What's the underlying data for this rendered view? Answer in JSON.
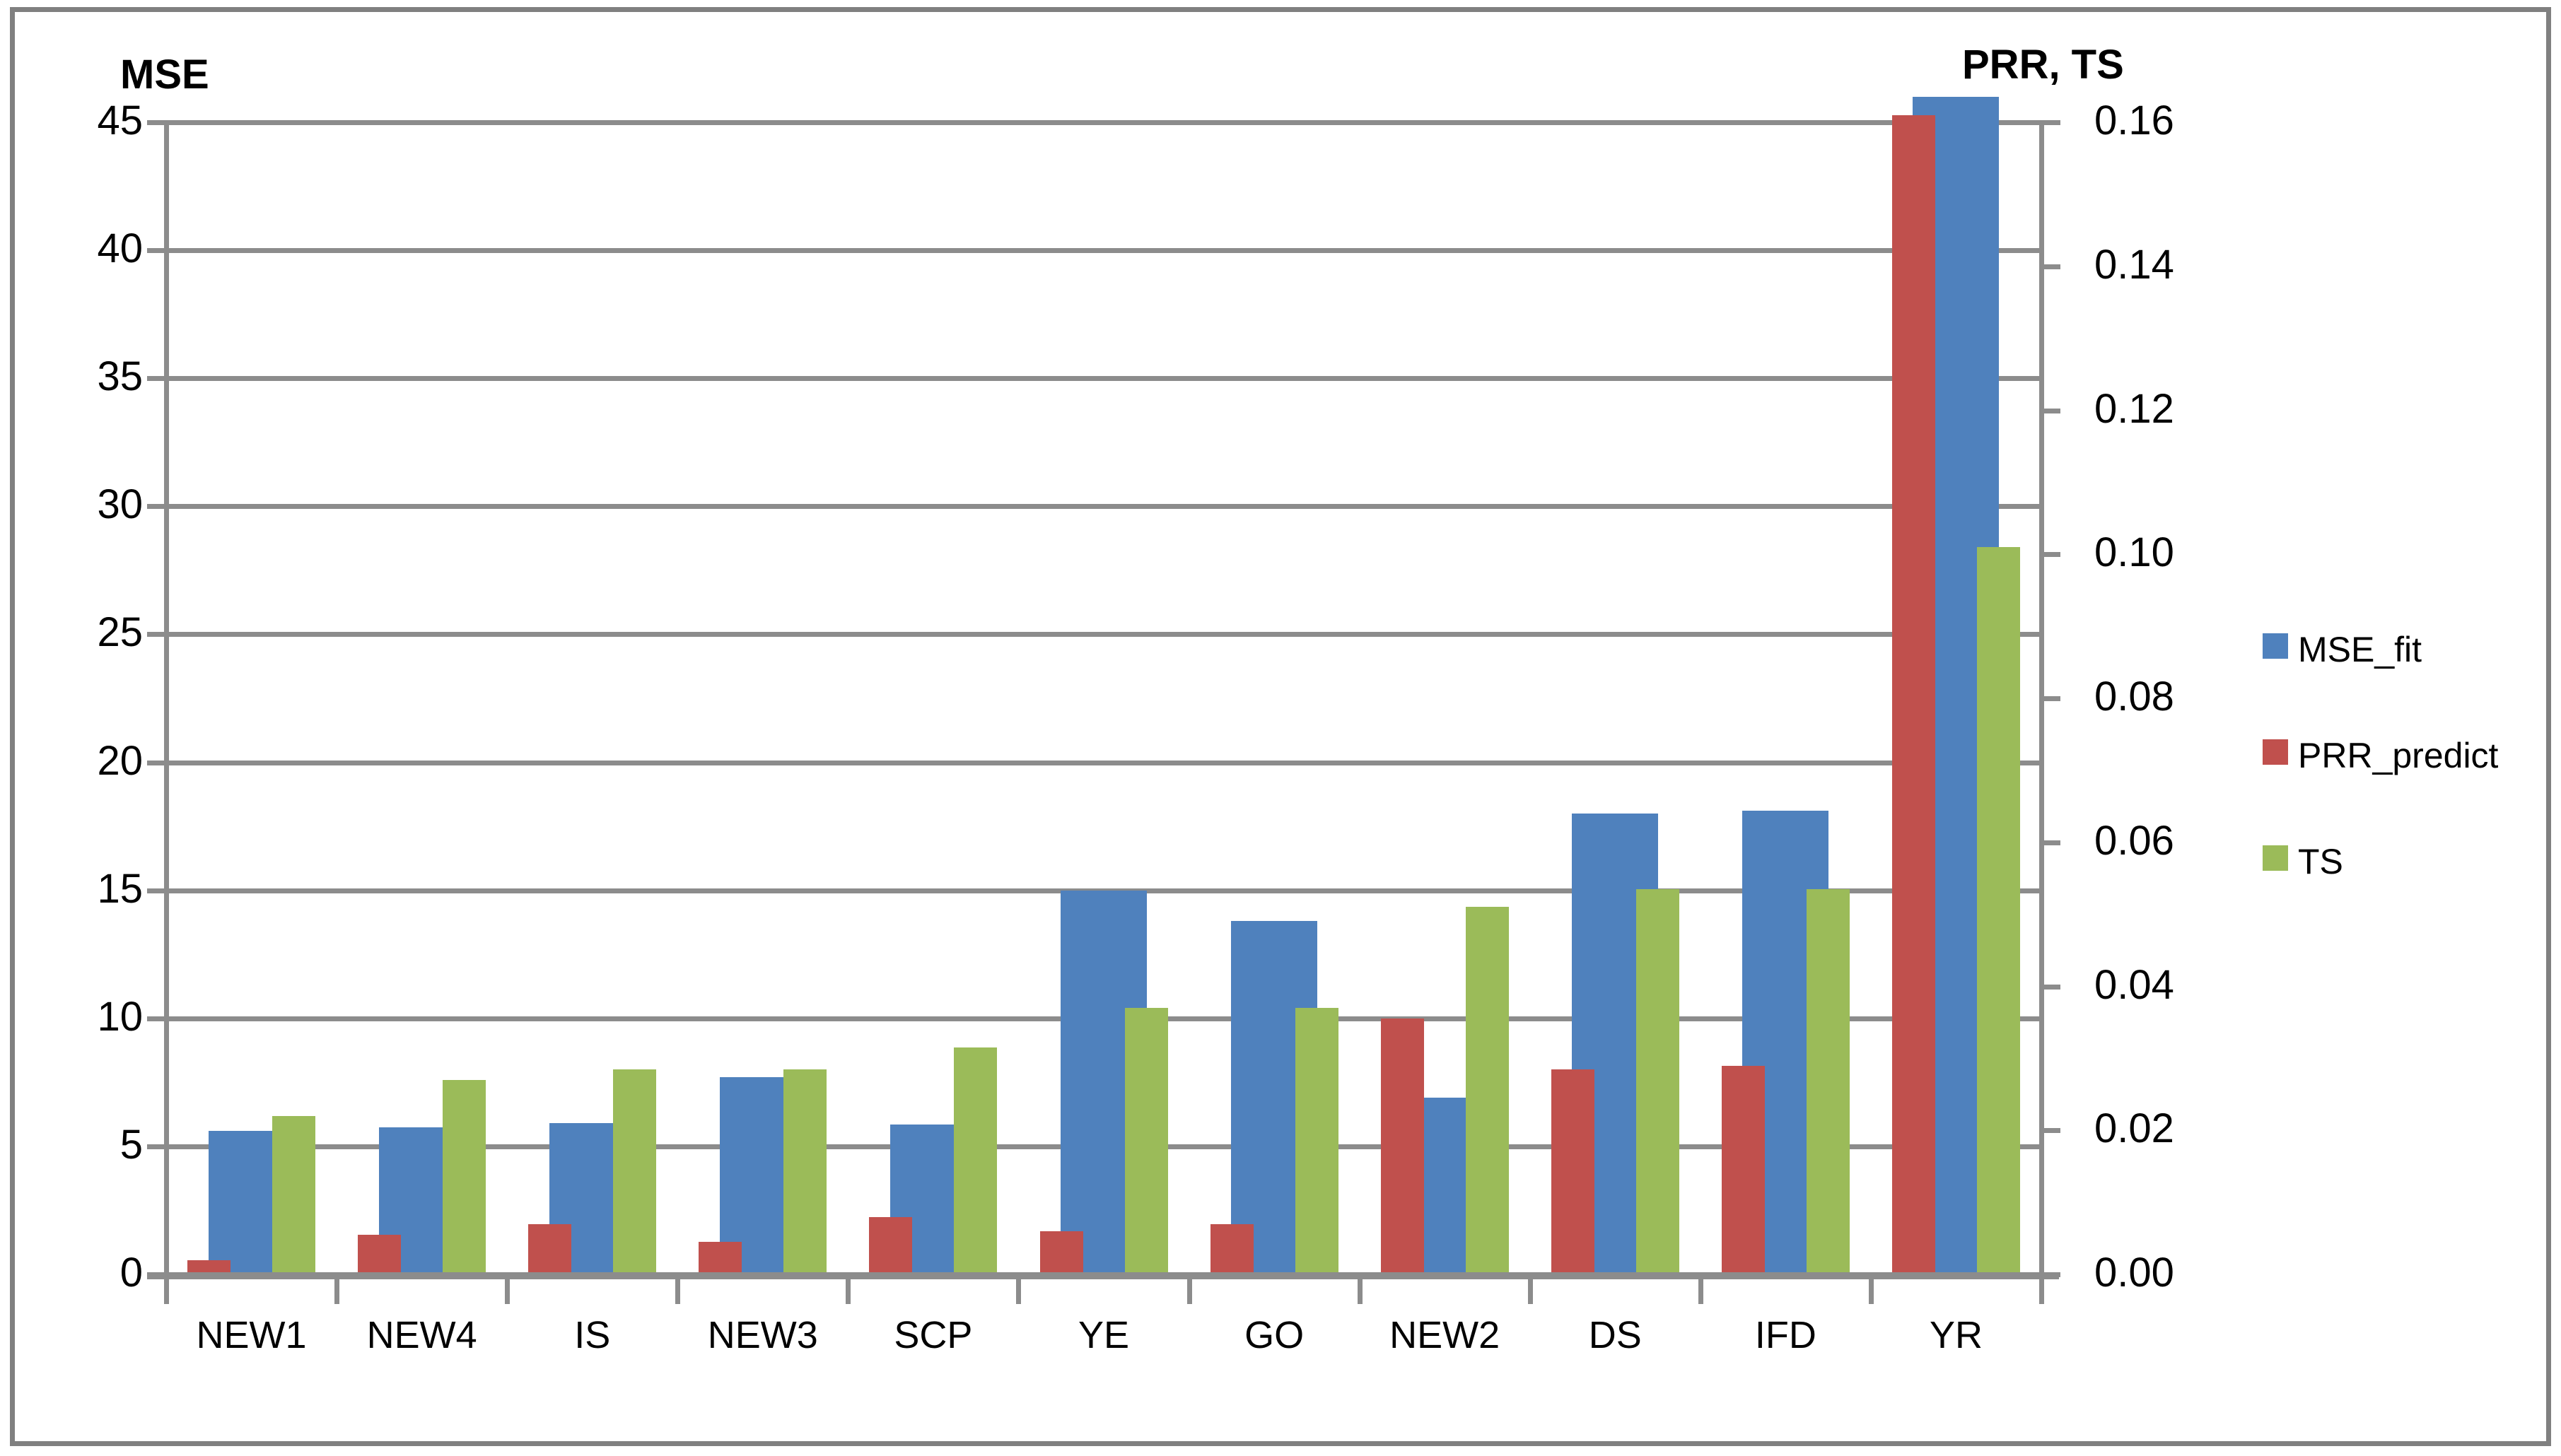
{
  "chart_data": {
    "type": "bar",
    "subtype": "dual-axis-column",
    "categories": [
      "NEW1",
      "NEW4",
      "IS",
      "NEW3",
      "SCP",
      "YE",
      "GO",
      "NEW2",
      "DS",
      "IFD",
      "YR"
    ],
    "series": [
      {
        "name": "MSE_fit",
        "axis": "left",
        "color": "#4F81BD",
        "values": [
          5.6,
          5.75,
          5.9,
          7.7,
          5.85,
          15.0,
          13.8,
          6.9,
          18.0,
          18.1,
          46.0
        ]
      },
      {
        "name": "PRR_predict",
        "axis": "right",
        "color": "#C0504D",
        "values": [
          0.002,
          0.0055,
          0.007,
          0.0045,
          0.008,
          0.006,
          0.007,
          0.0355,
          0.0285,
          0.029,
          0.161
        ]
      },
      {
        "name": "TS",
        "axis": "right",
        "color": "#9BBB59",
        "values": [
          0.022,
          0.027,
          0.0285,
          0.0285,
          0.0315,
          0.037,
          0.037,
          0.051,
          0.0535,
          0.0535,
          0.101
        ]
      }
    ],
    "left_axis": {
      "title": "MSE",
      "min": 0,
      "max": 45,
      "step": 5,
      "ticks": [
        "0",
        "5",
        "10",
        "15",
        "20",
        "25",
        "30",
        "35",
        "40",
        "45"
      ]
    },
    "right_axis": {
      "title": "PRR, TS",
      "min": 0,
      "max": 0.16,
      "step": 0.02,
      "ticks": [
        "0.00",
        "0.02",
        "0.04",
        "0.06",
        "0.08",
        "0.10",
        "0.12",
        "0.14",
        "0.16"
      ]
    },
    "legend": {
      "position": "right",
      "entries": [
        "MSE_fit",
        "PRR_predict",
        "TS"
      ]
    },
    "grid": "horizontal",
    "colors": {
      "grid": "#8C8C8C",
      "axis": "#8C8C8C",
      "chart_border": "#808080",
      "background": "#FFFFFF",
      "text": "#000000"
    }
  }
}
